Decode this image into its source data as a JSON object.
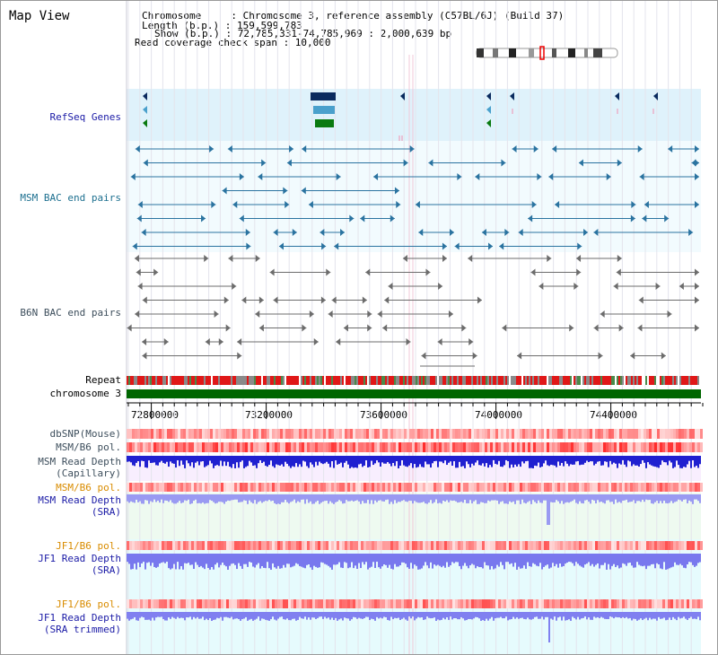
{
  "view_title": "Map View",
  "header": {
    "chromosome": "Chromosome     : Chromosome 3, reference assembly (C57BL/6J) (Build 37)",
    "length": "Length (b.p.) : 159,599,783",
    "show": "Show (b.p.) : 72,785,331-74,785,969 : 2,000,639 bp",
    "coverage": "Read coverage check span : 10,000"
  },
  "tracks": {
    "refseq_genes": "RefSeq Genes",
    "msm_bac": "MSM BAC end pairs",
    "b6n_bac": "B6N BAC end pairs",
    "repeat": "Repeat",
    "chromosome": "chromosome 3",
    "dbsnp": "dbSNP(Mouse)",
    "msm_b6_pol_1": "MSM/B6 pol.",
    "msm_read_depth_cap_1": "MSM Read Depth",
    "msm_read_depth_cap_2": "(Capillary)",
    "msm_b6_pol_2": "MSM/B6 pol.",
    "msm_read_depth_sra_1": "MSM Read Depth",
    "msm_read_depth_sra_2": "(SRA)",
    "jf1_b6_pol_1": "JF1/B6 pol.",
    "jf1_read_depth_sra_1": "JF1 Read Depth",
    "jf1_read_depth_sra_2": "(SRA)",
    "jf1_b6_pol_2": "JF1/B6 pol.",
    "jf1_read_depth_trim_1": "JF1 Read Depth",
    "jf1_read_depth_trim_2": "(SRA trimmed)"
  },
  "axis_ticks": [
    "72800000",
    "73200000",
    "73600000",
    "74000000",
    "74400000"
  ],
  "colors": {
    "refseq_bg": "#dff2fb",
    "bac_bg": "#f2fbfe",
    "b6n_bg": "#ffffff",
    "msm_bar": "#2a73a0",
    "b6n_bar": "#6c6c6c",
    "chromosome_green": "#006600",
    "repeat_red": "#e01010",
    "pol_pink": "#ff9a9a",
    "read_blue": "#2020d0",
    "read_light_blue": "#8a8af0",
    "depth_bg_pink": "#f6eefe",
    "depth_bg_green": "#eefaf0",
    "depth_bg_cyan": "#e6fbfd"
  }
}
